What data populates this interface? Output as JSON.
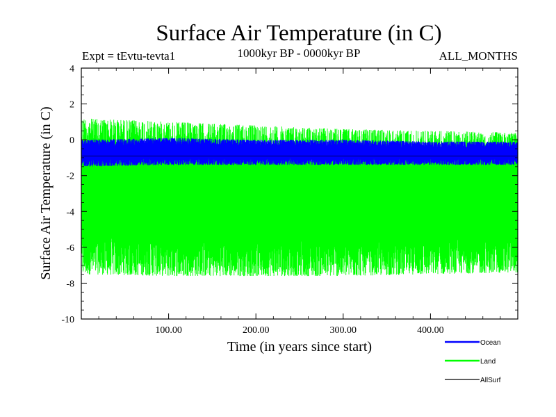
{
  "chart_data": {
    "type": "line",
    "title": "Surface Air Temperature (in C)",
    "subtitle": "1000kyr BP - 0000kyr BP",
    "experiment": "Expt = tEvtu-tevta1",
    "months_label": "ALL_MONTHS",
    "xlabel": "Time (in years since start)",
    "ylabel": "Surface Air Temperature (in C)",
    "xlim": [
      0,
      500
    ],
    "ylim": [
      -10,
      4
    ],
    "x_ticks": [
      {
        "value": 100,
        "label": "100.00"
      },
      {
        "value": 200,
        "label": "200.00"
      },
      {
        "value": 300,
        "label": "300.00"
      },
      {
        "value": 400,
        "label": "400.00"
      }
    ],
    "y_ticks": [
      {
        "value": 4,
        "label": "4"
      },
      {
        "value": 2,
        "label": "2"
      },
      {
        "value": 0,
        "label": "0"
      },
      {
        "value": -2,
        "label": "-2"
      },
      {
        "value": -4,
        "label": "-4"
      },
      {
        "value": -6,
        "label": "-6"
      },
      {
        "value": -8,
        "label": "-8"
      },
      {
        "value": -10,
        "label": "-10"
      }
    ],
    "series": [
      {
        "name": "Land",
        "color": "#00ff00",
        "band": {
          "x": [
            0,
            100,
            200,
            300,
            400,
            500
          ],
          "low": [
            -7.5,
            -7.6,
            -7.6,
            -7.6,
            -7.5,
            -7.4
          ],
          "high": [
            1.2,
            1.0,
            0.8,
            0.6,
            0.5,
            0.4
          ]
        }
      },
      {
        "name": "Ocean",
        "color": "#0000ff",
        "band": {
          "x": [
            0,
            100,
            200,
            300,
            400,
            500
          ],
          "low": [
            -1.5,
            -1.4,
            -1.4,
            -1.4,
            -1.4,
            -1.4
          ],
          "high": [
            0.0,
            0.1,
            0.0,
            0.0,
            -0.1,
            -0.1
          ]
        }
      },
      {
        "name": "AllSurf",
        "color": "#000000",
        "band": {
          "x": [
            0,
            500
          ],
          "low": [
            -0.9,
            -0.9
          ],
          "high": [
            -0.9,
            -0.9
          ]
        }
      }
    ],
    "legend": [
      {
        "label": "Ocean",
        "color": "#0000ff"
      },
      {
        "label": "Land",
        "color": "#00ff00"
      },
      {
        "label": "AllSurf",
        "color": "#000000"
      }
    ]
  }
}
